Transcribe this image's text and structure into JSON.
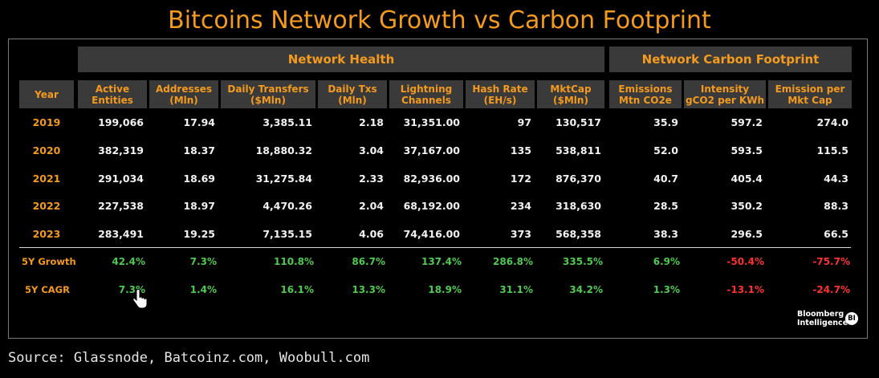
{
  "title": "Bitcoins Network Growth vs Carbon Footprint",
  "groups": {
    "network_health": "Network Health",
    "carbon": "Network Carbon Footprint"
  },
  "headers": {
    "year": "Year",
    "active_entities": "Active\nEntities",
    "addresses": "Addresses\n(Mln)",
    "daily_transfers": "Daily Transfers\n($Mln)",
    "daily_txs": "Daily Txs\n(Mln)",
    "lightning": "Lightning\nChannels",
    "hash_rate": "Hash Rate\n(EH/s)",
    "mktcap": "MktCap\n($Mln)",
    "emissions": "Emissions\nMtn CO2e",
    "intensity": "Intensity\ngCO2 per KWh",
    "emission_per_cap": "Emission per\nMkt Cap"
  },
  "rows": [
    {
      "year": "2019",
      "active_entities": "199,066",
      "addresses": "17.94",
      "daily_transfers": "3,385.11",
      "daily_txs": "2.18",
      "lightning": "31,351.00",
      "hash_rate": "97",
      "mktcap": "130,517",
      "emissions": "35.9",
      "intensity": "597.2",
      "emission_per_cap": "274.0"
    },
    {
      "year": "2020",
      "active_entities": "382,319",
      "addresses": "18.37",
      "daily_transfers": "18,880.32",
      "daily_txs": "3.04",
      "lightning": "37,167.00",
      "hash_rate": "135",
      "mktcap": "538,811",
      "emissions": "52.0",
      "intensity": "593.5",
      "emission_per_cap": "115.5"
    },
    {
      "year": "2021",
      "active_entities": "291,034",
      "addresses": "18.69",
      "daily_transfers": "31,275.84",
      "daily_txs": "2.33",
      "lightning": "82,936.00",
      "hash_rate": "172",
      "mktcap": "876,370",
      "emissions": "40.7",
      "intensity": "405.4",
      "emission_per_cap": "44.3"
    },
    {
      "year": "2022",
      "active_entities": "227,538",
      "addresses": "18.97",
      "daily_transfers": "4,470.26",
      "daily_txs": "2.04",
      "lightning": "68,192.00",
      "hash_rate": "234",
      "mktcap": "318,630",
      "emissions": "28.5",
      "intensity": "350.2",
      "emission_per_cap": "88.3"
    },
    {
      "year": "2023",
      "active_entities": "283,491",
      "addresses": "19.25",
      "daily_transfers": "7,135.15",
      "daily_txs": "4.06",
      "lightning": "74,416.00",
      "hash_rate": "373",
      "mktcap": "568,358",
      "emissions": "38.3",
      "intensity": "296.5",
      "emission_per_cap": "66.5"
    }
  ],
  "summary_rows": [
    {
      "label": "5Y Growth",
      "active_entities": "42.4%",
      "addresses": "7.3%",
      "daily_transfers": "110.8%",
      "daily_txs": "86.7%",
      "lightning": "137.4%",
      "hash_rate": "286.8%",
      "mktcap": "335.5%",
      "emissions": "6.9%",
      "intensity": "-50.4%",
      "emission_per_cap": "-75.7%"
    },
    {
      "label": "5Y CAGR",
      "active_entities": "7.3%",
      "addresses": "1.4%",
      "daily_transfers": "16.1%",
      "daily_txs": "13.3%",
      "lightning": "18.9%",
      "hash_rate": "31.1%",
      "mktcap": "34.2%",
      "emissions": "1.3%",
      "intensity": "-13.1%",
      "emission_per_cap": "-24.7%"
    }
  ],
  "colors": {
    "accent": "#f39a1f",
    "positive": "#4fc94f",
    "negative": "#ff3030",
    "header_bg": "#3a3a3a"
  },
  "logo": {
    "line1": "Bloomberg",
    "line2": "Intelligence",
    "badge": "BI"
  },
  "source": "Source: Glassnode, Batcoinz.com, Woobull.com",
  "icons": [
    "mouse-pointer-hand-icon"
  ]
}
